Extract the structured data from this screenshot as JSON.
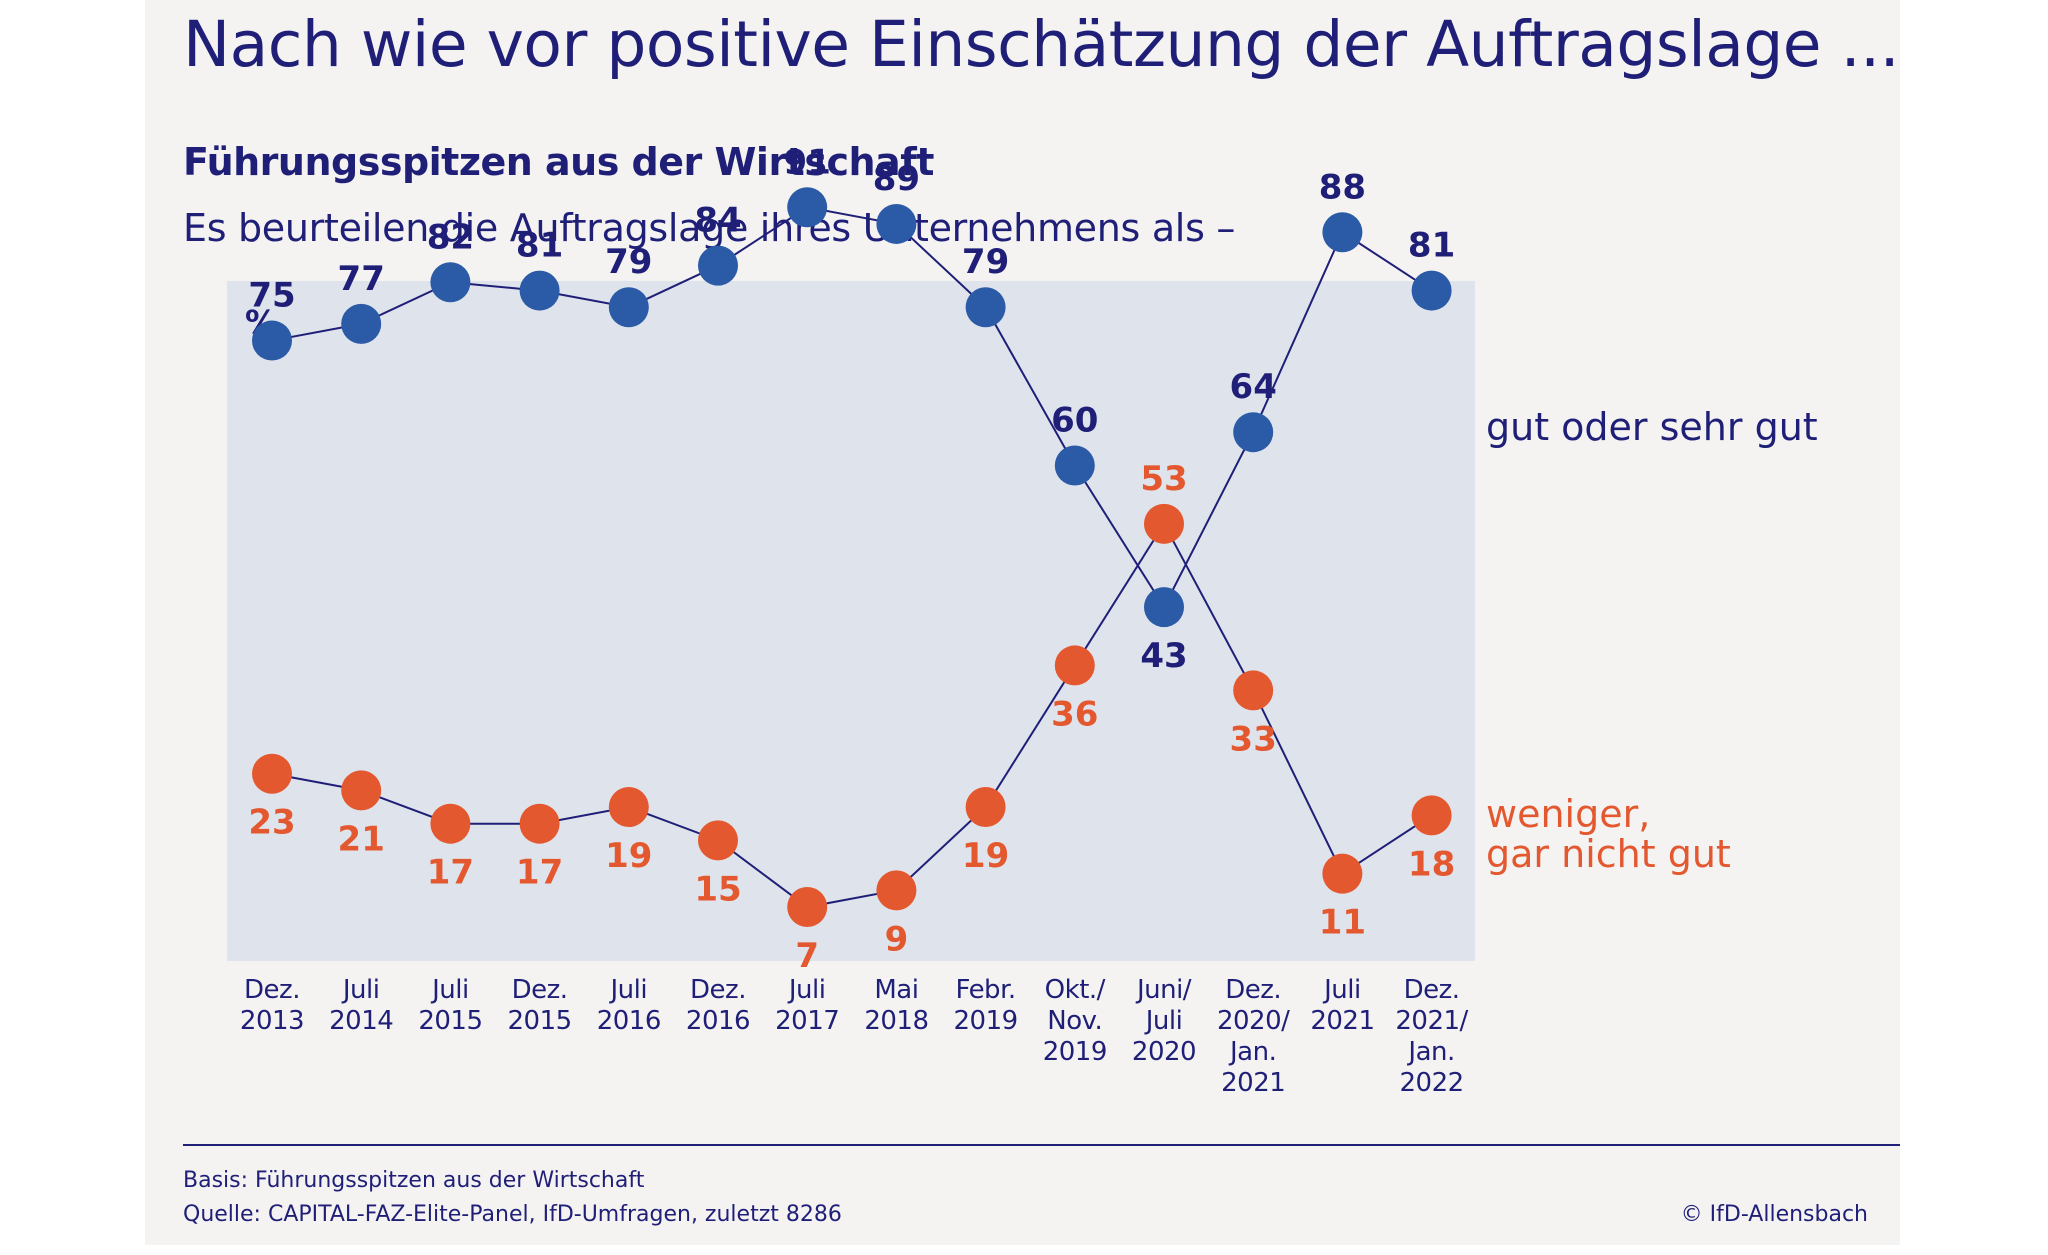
{
  "title": "Nach wie vor positive Einschätzung der Auftragslage ...",
  "subtitle": "Führungsspitzen aus der Wirtschaft",
  "question": "Es beurteilen die Auftragslage ihres Unternehmens als –",
  "footer": {
    "basis": "Basis: Führungsspitzen aus der Wirtschaft",
    "quelle": "Quelle: CAPITAL-FAZ-Elite-Panel, IfD-Umfragen, zuletzt 8286",
    "copyright": "© IfD-Allensbach"
  },
  "colors": {
    "blue": "#2b5aa6",
    "orange": "#e4582f",
    "navy": "#1f1f78",
    "plot_bg": "#dfe4ec"
  },
  "chart_data": {
    "type": "line",
    "unit_label": "%",
    "ylim": [
      0,
      100
    ],
    "grid": false,
    "categories": [
      [
        "Dez.",
        "2013"
      ],
      [
        "Juli",
        "2014"
      ],
      [
        "Juli",
        "2015"
      ],
      [
        "Dez.",
        "2015"
      ],
      [
        "Juli",
        "2016"
      ],
      [
        "Dez.",
        "2016"
      ],
      [
        "Juli",
        "2017"
      ],
      [
        "Mai",
        "2018"
      ],
      [
        "Febr.",
        "2019"
      ],
      [
        "Okt./",
        "Nov.",
        "2019"
      ],
      [
        "Juni/",
        "Juli",
        "2020"
      ],
      [
        "Dez.",
        "2020/",
        "Jan.",
        "2021"
      ],
      [
        "Juli",
        "2021"
      ],
      [
        "Dez.",
        "2021/",
        "Jan.",
        "2022"
      ]
    ],
    "series": [
      {
        "name": "gut oder sehr gut",
        "label_lines": [
          "gut oder sehr gut"
        ],
        "color": "#2b5aa6",
        "label_color": "#1f1f78",
        "values": [
          75,
          77,
          82,
          81,
          79,
          84,
          91,
          89,
          79,
          60,
          43,
          64,
          88,
          81
        ]
      },
      {
        "name": "weniger, gar nicht gut",
        "label_lines": [
          "weniger,",
          "gar nicht gut"
        ],
        "color": "#e4582f",
        "label_color": "#e4582f",
        "values": [
          23,
          21,
          17,
          17,
          19,
          15,
          7,
          9,
          19,
          36,
          53,
          33,
          11,
          18
        ]
      }
    ]
  }
}
